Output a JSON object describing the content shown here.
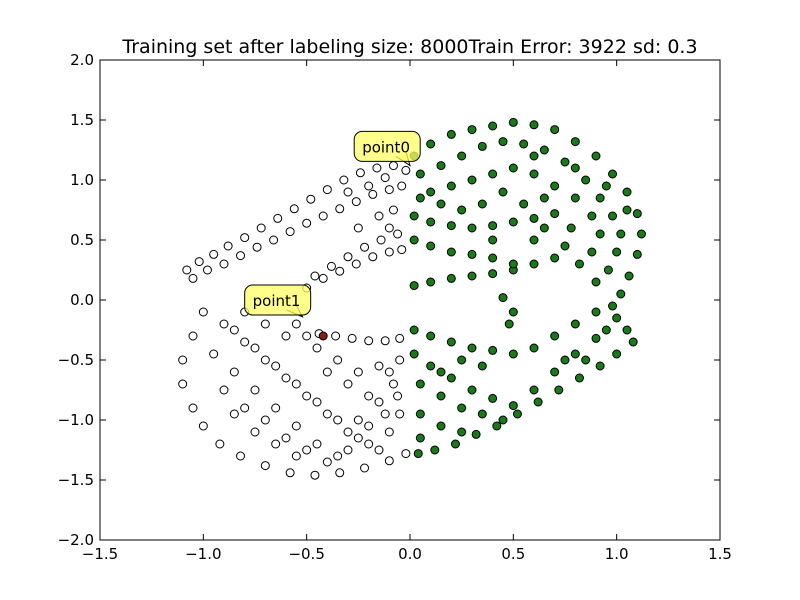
{
  "chart_data": {
    "type": "scatter",
    "title": "Training set after labeling size: 8000Train Error: 3922 sd: 0.3",
    "xlabel": "",
    "ylabel": "",
    "xlim": [
      -1.5,
      1.5
    ],
    "ylim": [
      -2.0,
      2.0
    ],
    "x_ticks": [
      "−1.5",
      "−1.0",
      "−0.5",
      "0.0",
      "0.5",
      "1.0",
      "1.5"
    ],
    "y_ticks": [
      "2.0",
      "1.5",
      "1.0",
      "0.5",
      "0.0",
      "−0.5",
      "−1.0",
      "−1.5",
      "−2.0"
    ],
    "grid": false,
    "legend": "none",
    "series": [
      {
        "label_class": "white",
        "color": "#ffffff",
        "edge_color": "#000000",
        "points": [
          [
            -1.08,
            0.25
          ],
          [
            -1.02,
            0.32
          ],
          [
            -0.95,
            0.38
          ],
          [
            -0.88,
            0.45
          ],
          [
            -0.8,
            0.52
          ],
          [
            -0.72,
            0.6
          ],
          [
            -0.64,
            0.68
          ],
          [
            -0.56,
            0.76
          ],
          [
            -0.48,
            0.84
          ],
          [
            -0.4,
            0.92
          ],
          [
            -0.32,
            1.0
          ],
          [
            -0.24,
            1.06
          ],
          [
            -0.16,
            1.1
          ],
          [
            -0.08,
            1.12
          ],
          [
            -0.02,
            1.08
          ],
          [
            -1.05,
            0.18
          ],
          [
            -0.98,
            0.25
          ],
          [
            -0.9,
            0.3
          ],
          [
            -0.82,
            0.37
          ],
          [
            -0.74,
            0.44
          ],
          [
            -0.66,
            0.5
          ],
          [
            -0.58,
            0.57
          ],
          [
            -0.5,
            0.64
          ],
          [
            -0.42,
            0.7
          ],
          [
            -0.34,
            0.76
          ],
          [
            -0.26,
            0.82
          ],
          [
            -0.18,
            0.88
          ],
          [
            -0.1,
            0.92
          ],
          [
            -0.04,
            0.95
          ],
          [
            -0.5,
            0.1
          ],
          [
            -0.42,
            0.18
          ],
          [
            -0.34,
            0.24
          ],
          [
            -0.26,
            0.3
          ],
          [
            -0.18,
            0.36
          ],
          [
            -0.1,
            0.4
          ],
          [
            -0.04,
            0.42
          ],
          [
            -0.46,
            0.2
          ],
          [
            -0.38,
            0.28
          ],
          [
            -0.3,
            0.36
          ],
          [
            -0.22,
            0.44
          ],
          [
            -0.14,
            0.5
          ],
          [
            -0.06,
            0.55
          ],
          [
            -0.55,
            -0.2
          ],
          [
            -0.5,
            -0.3
          ],
          [
            -0.44,
            -0.28
          ],
          [
            -0.36,
            -0.3
          ],
          [
            -0.28,
            -0.32
          ],
          [
            -0.2,
            -0.34
          ],
          [
            -0.12,
            -0.34
          ],
          [
            -0.05,
            -0.32
          ],
          [
            -1.0,
            -0.1
          ],
          [
            -1.05,
            -0.3
          ],
          [
            -1.1,
            -0.5
          ],
          [
            -1.1,
            -0.7
          ],
          [
            -1.05,
            -0.9
          ],
          [
            -1.0,
            -1.05
          ],
          [
            -0.92,
            -1.2
          ],
          [
            -0.82,
            -1.3
          ],
          [
            -0.7,
            -1.38
          ],
          [
            -0.58,
            -1.44
          ],
          [
            -0.46,
            -1.46
          ],
          [
            -0.34,
            -1.44
          ],
          [
            -0.22,
            -1.4
          ],
          [
            -0.1,
            -1.34
          ],
          [
            -0.02,
            -1.28
          ],
          [
            -0.9,
            -0.2
          ],
          [
            -0.8,
            -0.35
          ],
          [
            -0.7,
            -0.5
          ],
          [
            -0.6,
            -0.65
          ],
          [
            -0.5,
            -0.8
          ],
          [
            -0.4,
            -0.95
          ],
          [
            -0.3,
            -1.1
          ],
          [
            -0.2,
            -1.2
          ],
          [
            -0.1,
            -1.1
          ],
          [
            -0.05,
            -0.95
          ],
          [
            -0.95,
            -0.45
          ],
          [
            -0.85,
            -0.6
          ],
          [
            -0.75,
            -0.75
          ],
          [
            -0.65,
            -0.9
          ],
          [
            -0.55,
            -1.05
          ],
          [
            -0.45,
            -1.2
          ],
          [
            -0.35,
            -1.3
          ],
          [
            -0.25,
            -1.0
          ],
          [
            -0.15,
            -0.85
          ],
          [
            -0.08,
            -0.7
          ],
          [
            -0.85,
            -0.95
          ],
          [
            -0.75,
            -1.1
          ],
          [
            -0.65,
            -1.2
          ],
          [
            -0.55,
            -1.3
          ],
          [
            -0.9,
            -0.75
          ],
          [
            -0.8,
            -0.9
          ],
          [
            -0.7,
            -1.0
          ],
          [
            -0.6,
            -1.15
          ],
          [
            -0.5,
            -1.25
          ],
          [
            -0.4,
            -1.35
          ],
          [
            -0.3,
            -1.25
          ],
          [
            -0.2,
            -1.05
          ],
          [
            -0.12,
            -0.95
          ],
          [
            -0.06,
            -0.8
          ],
          [
            -0.35,
            -0.5
          ],
          [
            -0.25,
            -0.6
          ],
          [
            -0.15,
            -0.55
          ],
          [
            -0.05,
            -0.5
          ],
          [
            -0.3,
            -0.7
          ],
          [
            -0.2,
            -0.8
          ],
          [
            -0.1,
            -0.6
          ],
          [
            -0.4,
            -0.6
          ],
          [
            -0.45,
            -0.4
          ],
          [
            -0.6,
            -0.3
          ],
          [
            -0.7,
            -0.2
          ],
          [
            -0.8,
            -0.1
          ],
          [
            -0.85,
            -0.25
          ],
          [
            -0.75,
            -0.4
          ],
          [
            -0.65,
            -0.55
          ],
          [
            -0.55,
            -0.7
          ],
          [
            -0.45,
            -0.85
          ],
          [
            -0.35,
            -1.0
          ],
          [
            -0.25,
            -1.15
          ],
          [
            -0.15,
            -1.25
          ],
          [
            -0.2,
            0.95
          ],
          [
            -0.12,
            1.02
          ],
          [
            -0.3,
            0.9
          ],
          [
            -0.15,
            0.7
          ],
          [
            -0.08,
            0.75
          ],
          [
            -0.25,
            0.6
          ],
          [
            -0.1,
            0.6
          ]
        ]
      },
      {
        "label_class": "green",
        "color": "#1a7a1a",
        "edge_color": "#000000",
        "points": [
          [
            0.02,
            1.2
          ],
          [
            0.1,
            1.3
          ],
          [
            0.2,
            1.38
          ],
          [
            0.3,
            1.42
          ],
          [
            0.4,
            1.45
          ],
          [
            0.5,
            1.48
          ],
          [
            0.6,
            1.46
          ],
          [
            0.7,
            1.42
          ],
          [
            0.8,
            1.32
          ],
          [
            0.9,
            1.2
          ],
          [
            0.98,
            1.05
          ],
          [
            1.05,
            0.9
          ],
          [
            1.1,
            0.72
          ],
          [
            1.12,
            0.55
          ],
          [
            1.1,
            0.38
          ],
          [
            1.06,
            0.2
          ],
          [
            1.02,
            0.05
          ],
          [
            0.98,
            -0.05
          ],
          [
            0.05,
            1.05
          ],
          [
            0.15,
            1.12
          ],
          [
            0.25,
            1.2
          ],
          [
            0.35,
            1.28
          ],
          [
            0.45,
            1.32
          ],
          [
            0.55,
            1.3
          ],
          [
            0.65,
            1.25
          ],
          [
            0.75,
            1.15
          ],
          [
            0.85,
            1.0
          ],
          [
            0.92,
            0.85
          ],
          [
            0.98,
            0.7
          ],
          [
            1.02,
            0.55
          ],
          [
            1.0,
            0.4
          ],
          [
            0.96,
            0.25
          ],
          [
            0.9,
            0.15
          ],
          [
            0.1,
            0.9
          ],
          [
            0.2,
            0.95
          ],
          [
            0.3,
            1.0
          ],
          [
            0.4,
            1.05
          ],
          [
            0.5,
            1.1
          ],
          [
            0.6,
            1.05
          ],
          [
            0.7,
            0.95
          ],
          [
            0.8,
            0.85
          ],
          [
            0.88,
            0.7
          ],
          [
            0.92,
            0.55
          ],
          [
            0.88,
            0.4
          ],
          [
            0.82,
            0.3
          ],
          [
            0.02,
            0.7
          ],
          [
            0.1,
            0.65
          ],
          [
            0.2,
            0.62
          ],
          [
            0.3,
            0.6
          ],
          [
            0.4,
            0.62
          ],
          [
            0.5,
            0.65
          ],
          [
            0.6,
            0.68
          ],
          [
            0.7,
            0.72
          ],
          [
            0.78,
            0.6
          ],
          [
            0.75,
            0.45
          ],
          [
            0.7,
            0.35
          ],
          [
            0.6,
            0.3
          ],
          [
            0.5,
            0.25
          ],
          [
            0.4,
            0.22
          ],
          [
            0.3,
            0.2
          ],
          [
            0.2,
            0.18
          ],
          [
            0.1,
            0.15
          ],
          [
            0.02,
            0.12
          ],
          [
            0.02,
            0.5
          ],
          [
            0.1,
            0.45
          ],
          [
            0.2,
            0.4
          ],
          [
            0.3,
            0.38
          ],
          [
            0.4,
            0.35
          ],
          [
            0.5,
            0.3
          ],
          [
            0.45,
            0.02
          ],
          [
            0.5,
            -0.1
          ],
          [
            0.48,
            -0.2
          ],
          [
            0.02,
            -0.25
          ],
          [
            0.1,
            -0.3
          ],
          [
            0.2,
            -0.35
          ],
          [
            0.3,
            -0.4
          ],
          [
            0.4,
            -0.42
          ],
          [
            0.5,
            -0.45
          ],
          [
            0.6,
            -0.4
          ],
          [
            0.7,
            -0.3
          ],
          [
            0.8,
            -0.2
          ],
          [
            0.9,
            -0.1
          ],
          [
            1.0,
            -0.15
          ],
          [
            1.05,
            -0.25
          ],
          [
            1.08,
            -0.35
          ],
          [
            1.0,
            -0.45
          ],
          [
            0.92,
            -0.55
          ],
          [
            0.82,
            -0.65
          ],
          [
            0.72,
            -0.75
          ],
          [
            0.62,
            -0.85
          ],
          [
            0.52,
            -0.95
          ],
          [
            0.42,
            -1.05
          ],
          [
            0.32,
            -1.12
          ],
          [
            0.22,
            -1.2
          ],
          [
            0.12,
            -1.25
          ],
          [
            0.04,
            -1.28
          ],
          [
            0.02,
            -0.45
          ],
          [
            0.1,
            -0.55
          ],
          [
            0.2,
            -0.65
          ],
          [
            0.3,
            -0.75
          ],
          [
            0.4,
            -0.82
          ],
          [
            0.5,
            -0.88
          ],
          [
            0.6,
            -0.75
          ],
          [
            0.7,
            -0.6
          ],
          [
            0.8,
            -0.45
          ],
          [
            0.9,
            -0.32
          ],
          [
            0.05,
            -0.7
          ],
          [
            0.15,
            -0.8
          ],
          [
            0.25,
            -0.9
          ],
          [
            0.35,
            -0.95
          ],
          [
            0.45,
            -1.0
          ],
          [
            0.05,
            -0.95
          ],
          [
            0.15,
            -1.05
          ],
          [
            0.25,
            -1.1
          ],
          [
            0.05,
            -1.15
          ],
          [
            0.15,
            -0.6
          ],
          [
            0.25,
            -0.5
          ],
          [
            0.35,
            -0.55
          ],
          [
            0.6,
            1.2
          ],
          [
            0.8,
            1.1
          ],
          [
            0.95,
            0.95
          ],
          [
            1.05,
            0.75
          ],
          [
            0.45,
            0.9
          ],
          [
            0.65,
            0.85
          ],
          [
            0.35,
            0.8
          ],
          [
            0.55,
            0.8
          ],
          [
            0.25,
            0.75
          ],
          [
            0.15,
            0.8
          ],
          [
            0.05,
            0.85
          ],
          [
            0.4,
            0.5
          ],
          [
            0.6,
            0.5
          ],
          [
            0.65,
            0.6
          ],
          [
            0.85,
            -0.5
          ],
          [
            0.75,
            -0.5
          ],
          [
            0.95,
            -0.25
          ]
        ]
      }
    ],
    "highlight_point": {
      "x": -0.42,
      "y": -0.3,
      "color": "#8b1a1a"
    },
    "annotations": [
      {
        "text": "point0",
        "x": 0.0,
        "y": 1.12,
        "text_x": -0.27,
        "text_y": 1.28,
        "box_color": "#ffff66"
      },
      {
        "text": "point1",
        "x": -0.52,
        "y": -0.14,
        "text_x": -0.8,
        "text_y": 0.0,
        "box_color": "#ffff66"
      }
    ]
  }
}
